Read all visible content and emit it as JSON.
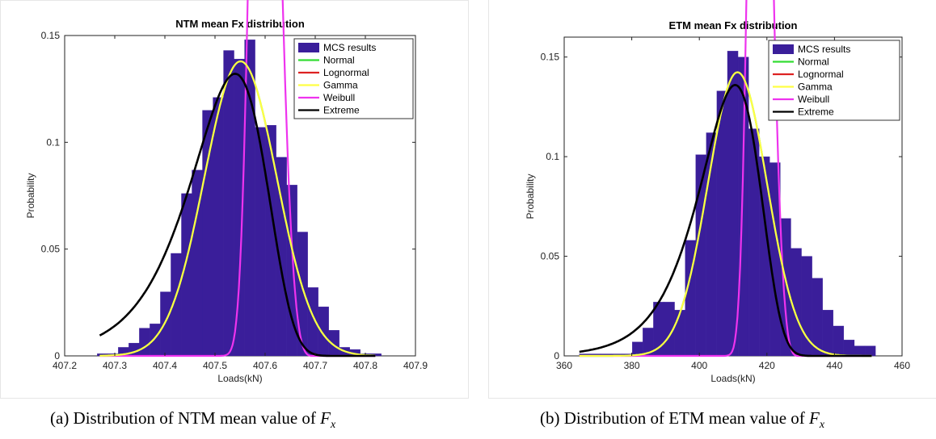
{
  "chart_data": [
    {
      "type": "bar",
      "title": "NTM mean Fx distribution",
      "xlabel": "Loads(kN)",
      "ylabel": "Probability",
      "xlim": [
        407.2,
        407.9
      ],
      "ylim": [
        0,
        0.15
      ],
      "xticks": [
        "407.2",
        "407.3",
        "407.4",
        "407.5",
        "407.6",
        "407.7",
        "407.8",
        "407.9"
      ],
      "yticks": [
        "0",
        "0.05",
        "0.1",
        "0.15"
      ],
      "legend_position": "top-right",
      "histogram": {
        "name": "MCS results",
        "color": "#3a1e9a",
        "bin_edges": [
          407.265,
          407.286,
          407.307,
          407.328,
          407.349,
          407.37,
          407.391,
          407.412,
          407.433,
          407.454,
          407.475,
          407.496,
          407.517,
          407.538,
          407.559,
          407.58,
          407.601,
          407.622,
          407.643,
          407.664,
          407.685,
          407.706,
          407.727,
          407.748,
          407.769,
          407.79,
          407.811,
          407.832
        ],
        "values": [
          0.001,
          0.001,
          0.004,
          0.006,
          0.013,
          0.015,
          0.03,
          0.048,
          0.076,
          0.087,
          0.115,
          0.121,
          0.143,
          0.139,
          0.148,
          0.107,
          0.108,
          0.093,
          0.08,
          0.058,
          0.032,
          0.023,
          0.012,
          0.004,
          0.003,
          0.001,
          0.001
        ]
      },
      "series": [
        {
          "name": "Normal",
          "color": "#33dd33",
          "dist": "normal",
          "mu": 407.551,
          "sigma": 0.0722,
          "scale": 0.02496
        },
        {
          "name": "Lognormal",
          "color": "#dd2222",
          "dist": "normal",
          "mu": 407.551,
          "sigma": 0.0722,
          "scale": 0.02496
        },
        {
          "name": "Gamma",
          "color": "#ffff44",
          "dist": "normal",
          "mu": 407.551,
          "sigma": 0.0722,
          "scale": 0.02496
        },
        {
          "name": "Weibull",
          "color": "#ee33ee",
          "dist": "weibull",
          "loc": 407.6,
          "lam": 0.105,
          "k": 4.5,
          "scale": 0.02755
        },
        {
          "name": "Extreme",
          "color": "#000000",
          "dist": "gumbel",
          "mu": 407.54,
          "beta": 0.075,
          "scale": 0.02693
        }
      ],
      "curve_range": [
        407.27,
        407.82
      ]
    },
    {
      "type": "bar",
      "title": "ETM mean Fx distribution",
      "xlabel": "Loads(kN)",
      "ylabel": "Probability",
      "xlim": [
        360,
        460
      ],
      "ylim": [
        0,
        0.16
      ],
      "xticks": [
        "360",
        "380",
        "400",
        "420",
        "440",
        "460"
      ],
      "yticks": [
        "0",
        "0.05",
        "0.1",
        "0.15"
      ],
      "legend_position": "top-right",
      "histogram": {
        "name": "MCS results",
        "color": "#3a1e9a",
        "bin_edges": [
          364.5,
          367.63,
          370.76,
          373.89,
          377.02,
          380.15,
          383.28,
          386.41,
          389.54,
          392.67,
          395.8,
          398.93,
          402.06,
          405.19,
          408.32,
          411.45,
          414.58,
          417.71,
          420.84,
          423.97,
          427.1,
          430.23,
          433.36,
          436.49,
          439.62,
          442.75,
          445.88,
          449.01,
          452.14
        ],
        "values": [
          0.001,
          0.001,
          0.001,
          0.001,
          0.001,
          0.007,
          0.014,
          0.027,
          0.027,
          0.023,
          0.058,
          0.101,
          0.112,
          0.133,
          0.153,
          0.15,
          0.114,
          0.1,
          0.097,
          0.069,
          0.054,
          0.05,
          0.039,
          0.023,
          0.015,
          0.008,
          0.005,
          0.005
        ]
      },
      "series": [
        {
          "name": "Normal",
          "color": "#33dd33",
          "dist": "normal",
          "mu": 411.3,
          "sigma": 8.77,
          "scale": 3.13
        },
        {
          "name": "Lognormal",
          "color": "#dd2222",
          "dist": "normal",
          "mu": 411.3,
          "sigma": 8.77,
          "scale": 3.13
        },
        {
          "name": "Gamma",
          "color": "#ffff44",
          "dist": "normal",
          "mu": 411.3,
          "sigma": 8.77,
          "scale": 3.13
        },
        {
          "name": "Weibull",
          "color": "#ee33ee",
          "dist": "weibull",
          "loc": 418.0,
          "lam": 12.5,
          "k": 4.5,
          "scale": 3.37
        },
        {
          "name": "Extreme",
          "color": "#000000",
          "dist": "gumbel",
          "mu": 410.6,
          "beta": 8.9,
          "scale": 3.29
        }
      ],
      "curve_range": [
        364.5,
        451.0
      ]
    }
  ],
  "captions": [
    {
      "prefix": "(a)  Distribution of NTM mean value of ",
      "symbol": "F",
      "subscript": "x"
    },
    {
      "prefix": "(b)  Distribution of ETM mean value of ",
      "symbol": "F",
      "subscript": "x"
    }
  ]
}
